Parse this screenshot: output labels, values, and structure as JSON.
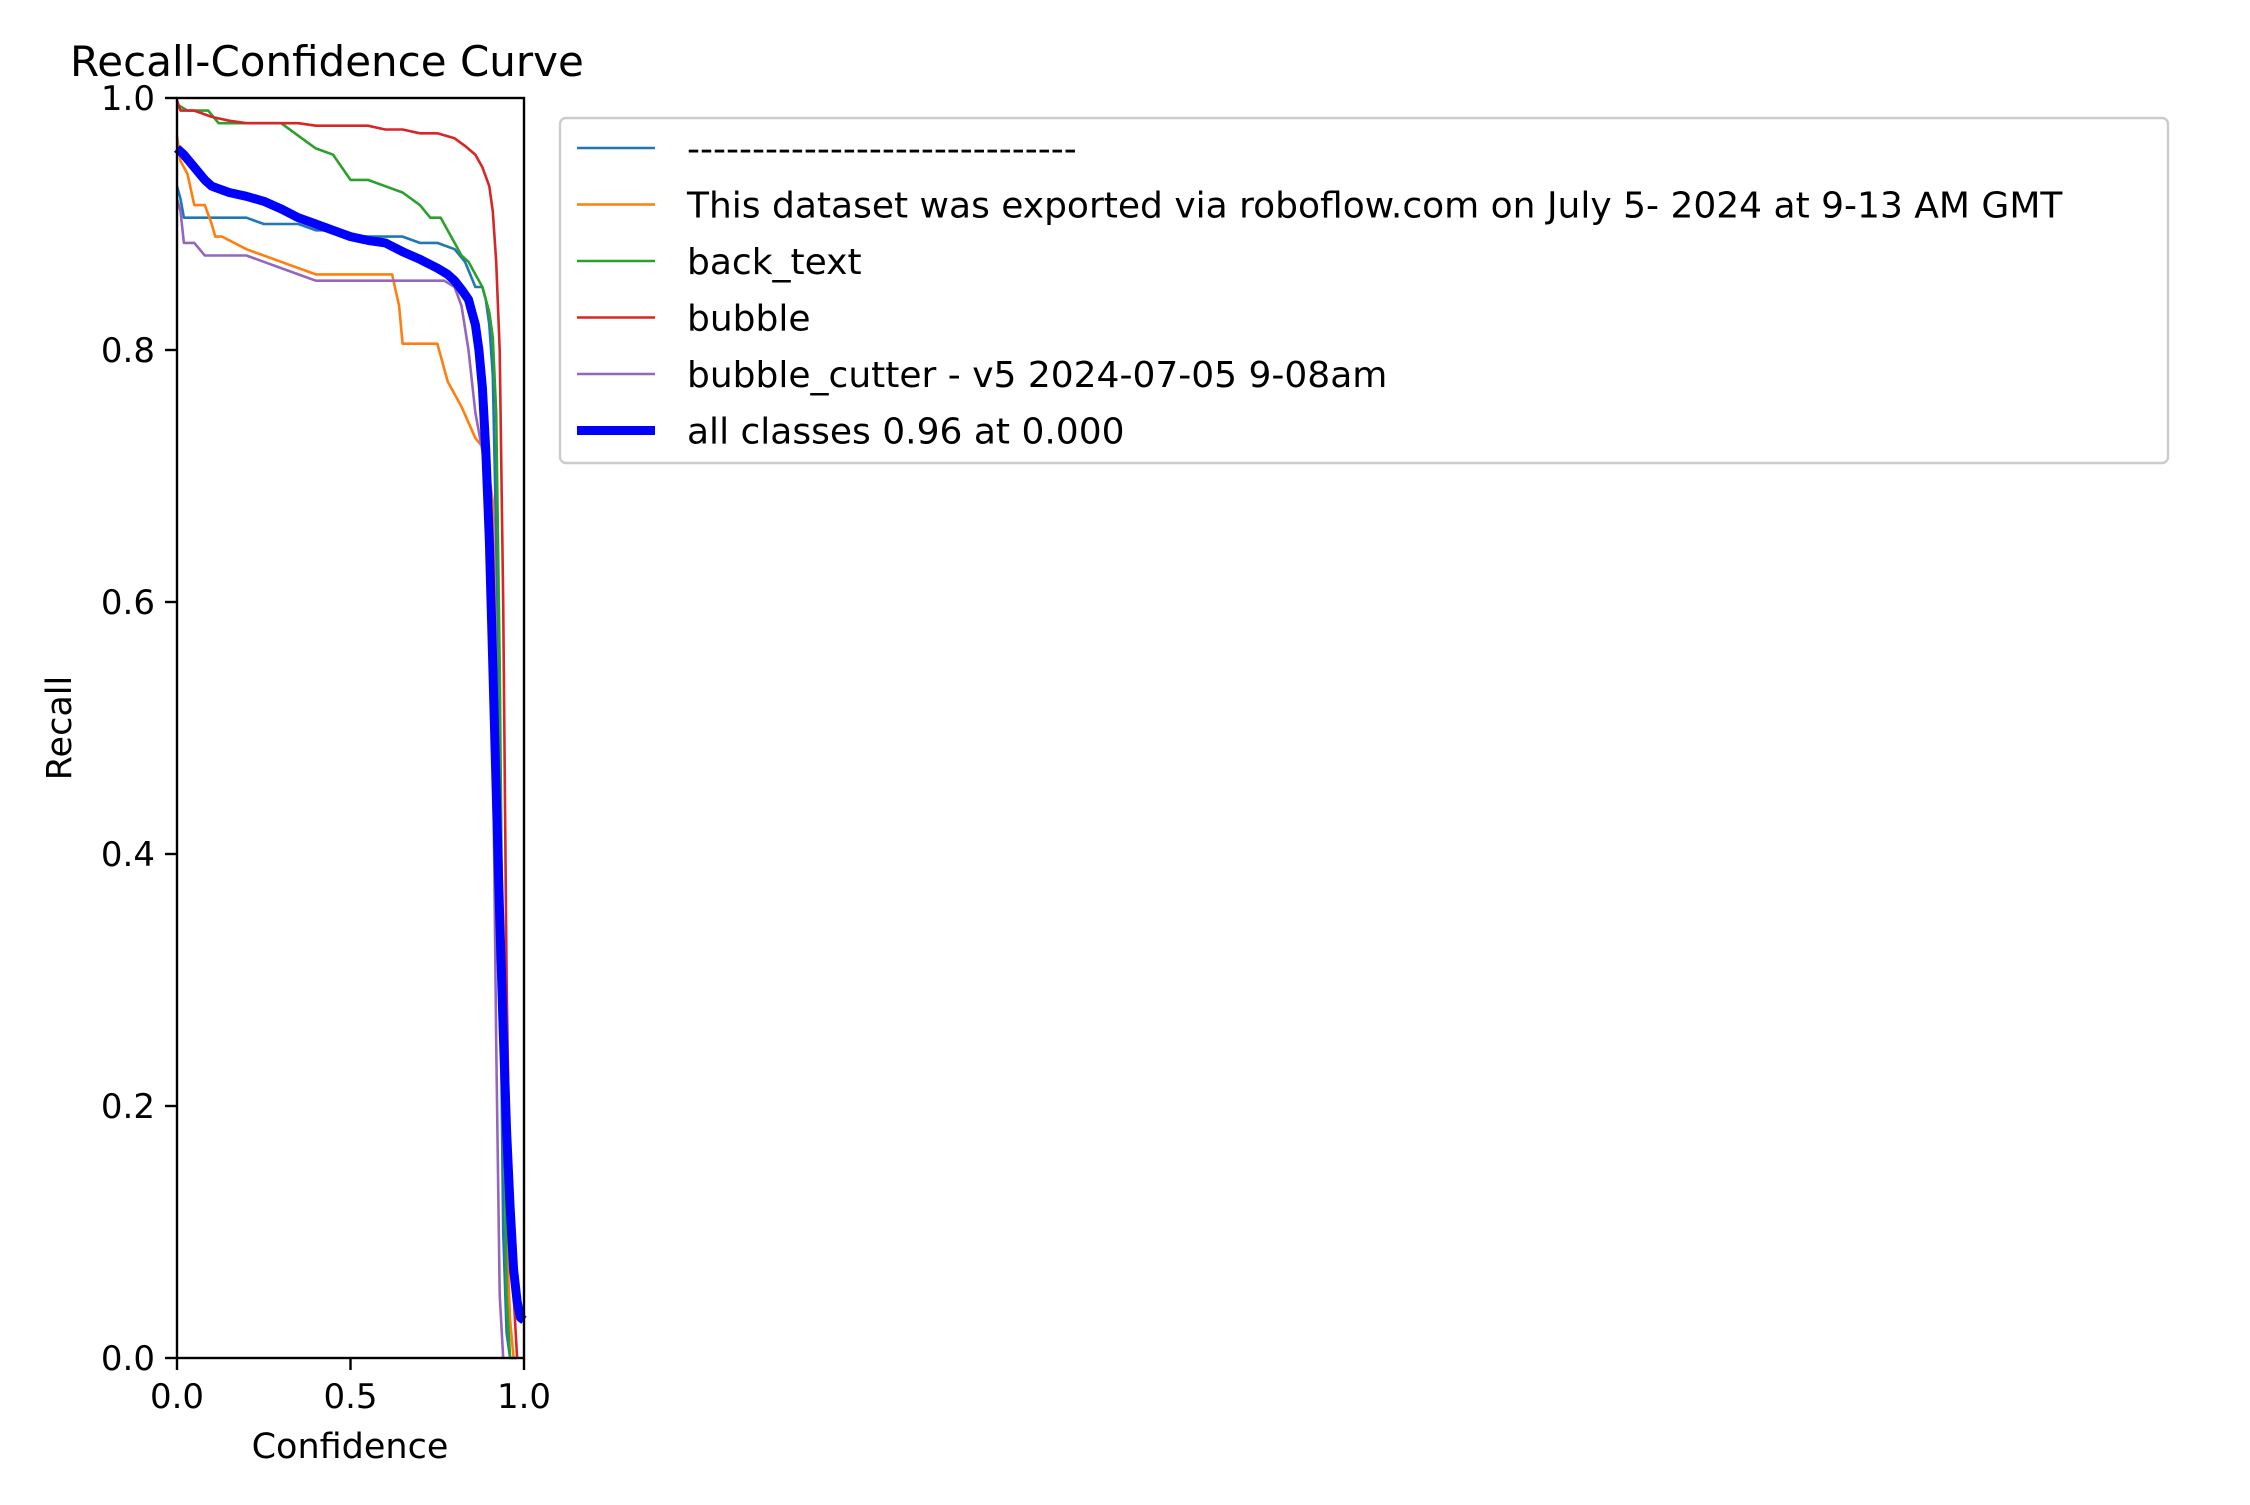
{
  "chart_data": {
    "type": "line",
    "title": "Recall-Confidence Curve",
    "xlabel": "Confidence",
    "ylabel": "Recall",
    "xlim": [
      0,
      1
    ],
    "ylim": [
      0,
      1
    ],
    "x_ticks": [
      "0.0",
      "0.5",
      "1.0"
    ],
    "y_ticks": [
      "0.0",
      "0.2",
      "0.4",
      "0.6",
      "0.8",
      "1.0"
    ],
    "grid": false,
    "legend_position": "outside-right",
    "series": [
      {
        "name": "------------------------------",
        "color": "#1f77b4",
        "width": "thin",
        "x": [
          0,
          0.01,
          0.02,
          0.05,
          0.1,
          0.2,
          0.25,
          0.3,
          0.35,
          0.4,
          0.45,
          0.5,
          0.55,
          0.6,
          0.65,
          0.7,
          0.75,
          0.8,
          0.83,
          0.86,
          0.88,
          0.89,
          0.9,
          0.91,
          0.92,
          0.93,
          0.94,
          0.95,
          0.96,
          0.97,
          0.98
        ],
        "y": [
          0.93,
          0.92,
          0.905,
          0.905,
          0.905,
          0.905,
          0.9,
          0.9,
          0.9,
          0.895,
          0.895,
          0.89,
          0.89,
          0.89,
          0.89,
          0.885,
          0.885,
          0.88,
          0.87,
          0.85,
          0.85,
          0.84,
          0.82,
          0.78,
          0.65,
          0.35,
          0.1,
          0.02,
          0.0,
          0.0,
          0.0
        ]
      },
      {
        "name": "This dataset was exported via roboflow.com on July 5- 2024 at 9-13 AM GMT",
        "color": "#ff7f0e",
        "width": "thin",
        "x": [
          0,
          0.01,
          0.03,
          0.05,
          0.08,
          0.1,
          0.11,
          0.13,
          0.2,
          0.3,
          0.4,
          0.5,
          0.55,
          0.62,
          0.64,
          0.65,
          0.68,
          0.72,
          0.75,
          0.78,
          0.82,
          0.86,
          0.89,
          0.91,
          0.92,
          0.93,
          0.94,
          0.95,
          0.96,
          0.97
        ],
        "y": [
          0.97,
          0.95,
          0.94,
          0.915,
          0.915,
          0.9,
          0.89,
          0.89,
          0.88,
          0.87,
          0.86,
          0.86,
          0.86,
          0.86,
          0.835,
          0.805,
          0.805,
          0.805,
          0.805,
          0.775,
          0.755,
          0.73,
          0.72,
          0.68,
          0.55,
          0.35,
          0.2,
          0.1,
          0.03,
          0.0
        ]
      },
      {
        "name": "back_text",
        "color": "#2ca02c",
        "width": "thin",
        "x": [
          0,
          0.03,
          0.06,
          0.09,
          0.12,
          0.15,
          0.2,
          0.25,
          0.3,
          0.35,
          0.4,
          0.45,
          0.5,
          0.55,
          0.6,
          0.65,
          0.7,
          0.73,
          0.76,
          0.8,
          0.82,
          0.84,
          0.86,
          0.88,
          0.9,
          0.91,
          0.92,
          0.93,
          0.94,
          0.95,
          0.96
        ],
        "y": [
          0.995,
          0.99,
          0.99,
          0.99,
          0.98,
          0.98,
          0.98,
          0.98,
          0.98,
          0.97,
          0.96,
          0.955,
          0.935,
          0.935,
          0.93,
          0.925,
          0.915,
          0.905,
          0.905,
          0.885,
          0.875,
          0.87,
          0.86,
          0.85,
          0.83,
          0.81,
          0.75,
          0.55,
          0.25,
          0.05,
          0.0
        ]
      },
      {
        "name": "bubble",
        "color": "#d62728",
        "width": "thin",
        "x": [
          0,
          0.01,
          0.05,
          0.1,
          0.15,
          0.2,
          0.25,
          0.3,
          0.35,
          0.4,
          0.45,
          0.5,
          0.55,
          0.6,
          0.65,
          0.7,
          0.75,
          0.8,
          0.83,
          0.86,
          0.88,
          0.9,
          0.91,
          0.92,
          0.93,
          0.94,
          0.95,
          0.96,
          0.97,
          0.98
        ],
        "y": [
          0.998,
          0.99,
          0.99,
          0.985,
          0.982,
          0.98,
          0.98,
          0.98,
          0.98,
          0.978,
          0.978,
          0.978,
          0.978,
          0.975,
          0.975,
          0.972,
          0.972,
          0.968,
          0.962,
          0.955,
          0.945,
          0.93,
          0.91,
          0.87,
          0.8,
          0.6,
          0.3,
          0.12,
          0.05,
          0.0
        ]
      },
      {
        "name": "bubble_cutter - v5 2024-07-05 9-08am",
        "color": "#9467bd",
        "width": "thin",
        "x": [
          0,
          0.01,
          0.02,
          0.05,
          0.08,
          0.1,
          0.15,
          0.2,
          0.25,
          0.3,
          0.35,
          0.4,
          0.5,
          0.6,
          0.7,
          0.75,
          0.77,
          0.8,
          0.82,
          0.84,
          0.86,
          0.88,
          0.89,
          0.9,
          0.91,
          0.92,
          0.93,
          0.94
        ],
        "y": [
          0.92,
          0.91,
          0.885,
          0.885,
          0.875,
          0.875,
          0.875,
          0.875,
          0.87,
          0.865,
          0.86,
          0.855,
          0.855,
          0.855,
          0.855,
          0.855,
          0.855,
          0.85,
          0.835,
          0.8,
          0.75,
          0.72,
          0.7,
          0.65,
          0.5,
          0.25,
          0.05,
          0.0
        ]
      },
      {
        "name": "all classes 0.96 at 0.000",
        "color": "#0000ff",
        "width": "thick",
        "x": [
          0,
          0.02,
          0.05,
          0.08,
          0.1,
          0.15,
          0.2,
          0.25,
          0.3,
          0.35,
          0.4,
          0.45,
          0.5,
          0.55,
          0.6,
          0.65,
          0.7,
          0.75,
          0.78,
          0.8,
          0.82,
          0.84,
          0.85,
          0.86,
          0.87,
          0.88,
          0.89,
          0.9,
          0.91,
          0.92,
          0.93,
          0.94,
          0.95,
          0.96,
          0.97,
          0.98,
          0.99,
          1.0
        ],
        "y": [
          0.96,
          0.955,
          0.945,
          0.935,
          0.93,
          0.925,
          0.922,
          0.918,
          0.912,
          0.905,
          0.9,
          0.895,
          0.89,
          0.887,
          0.885,
          0.878,
          0.872,
          0.865,
          0.86,
          0.855,
          0.848,
          0.84,
          0.83,
          0.82,
          0.8,
          0.77,
          0.72,
          0.65,
          0.55,
          0.45,
          0.35,
          0.26,
          0.18,
          0.12,
          0.07,
          0.045,
          0.032,
          0.03
        ]
      }
    ]
  }
}
